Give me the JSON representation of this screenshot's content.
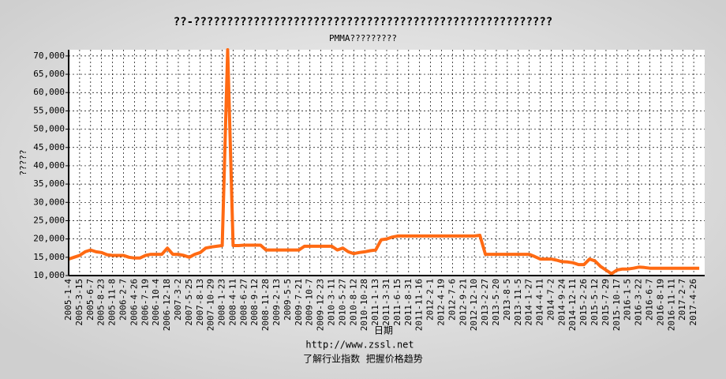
{
  "chart_data": {
    "type": "line",
    "title": "??-??????????????????????????????????????????????????????",
    "subtitle": "PMMA?????????",
    "y_label": "?????",
    "x_label": "日期",
    "footer_url": "http://www.zssl.net",
    "footer_slogan": "了解行业指数  把握价格趋势",
    "categories": [
      "2005-1-4",
      null,
      "2005-3-15",
      null,
      "2005-6-7",
      null,
      "2005-8-23",
      null,
      "2005-11-8",
      null,
      "2006-2-7",
      null,
      "2006-4-26",
      null,
      "2006-7-19",
      null,
      "2006-10-4",
      null,
      "2006-12-18",
      null,
      "2007-3-2",
      null,
      "2007-5-25",
      null,
      "2007-8-13",
      null,
      "2007-10-29",
      null,
      "2008-1-23",
      null,
      "2008-4-11",
      null,
      "2008-6-27",
      null,
      "2008-9-12",
      null,
      "2008-11-28",
      null,
      "2009-2-13",
      null,
      "2009-5-5",
      null,
      "2009-7-21",
      null,
      "2009-10-7",
      null,
      "2009-12-23",
      null,
      "2010-3-11",
      null,
      "2010-5-27",
      null,
      "2010-8-12",
      null,
      "2010-10-28",
      null,
      "2011-1-13",
      null,
      "2011-3-31",
      null,
      "2011-6-15",
      null,
      "2011-8-31",
      null,
      "2011-11-16",
      null,
      "2012-2-1",
      null,
      "2012-4-19",
      null,
      "2012-7-6",
      null,
      "2012-9-21",
      null,
      "2012-12-10",
      null,
      "2013-2-27",
      null,
      "2013-5-20",
      null,
      "2013-8-5",
      null,
      "2013-11-5",
      null,
      "2014-1-27",
      null,
      "2014-4-11",
      null,
      "2014-7-2",
      null,
      "2014-9-24",
      null,
      "2014-12-11",
      null,
      "2015-2-26",
      null,
      "2015-5-12",
      null,
      "2015-7-29",
      null,
      "2015-10-17",
      null,
      "2016-1-5",
      null,
      "2016-3-22",
      null,
      "2016-6-7",
      null,
      "2016-8-19",
      null,
      "2016-11-11",
      null,
      "2017-2-7",
      null,
      "2017-4-26",
      null
    ],
    "values": [
      14500,
      15000,
      15500,
      16500,
      17000,
      16500,
      16300,
      15700,
      15500,
      15500,
      15500,
      15000,
      14800,
      14800,
      15500,
      15800,
      15800,
      15800,
      17500,
      15800,
      15800,
      15500,
      15000,
      15800,
      16300,
      17500,
      17800,
      18000,
      18200,
      71700,
      18200,
      18200,
      18300,
      18300,
      18300,
      18300,
      17000,
      17000,
      17000,
      17000,
      17000,
      17000,
      17000,
      18000,
      18000,
      18000,
      18000,
      18000,
      18000,
      17000,
      17500,
      16500,
      16000,
      16300,
      16500,
      16800,
      17000,
      19800,
      20000,
      20500,
      20800,
      20800,
      20800,
      20800,
      20800,
      20800,
      20800,
      20800,
      20800,
      20800,
      20800,
      20800,
      20800,
      20800,
      20800,
      21000,
      15800,
      15800,
      15800,
      15800,
      15800,
      15800,
      15800,
      15800,
      15800,
      15200,
      14500,
      14500,
      14500,
      14200,
      13800,
      13700,
      13500,
      13000,
      13000,
      14500,
      14000,
      12500,
      11500,
      10500,
      11500,
      11800,
      11800,
      12000,
      12300,
      12200,
      12000,
      12000,
      12000,
      12000,
      12000,
      12000,
      12000,
      12000,
      12000,
      12000
    ],
    "color": "#ff6a13",
    "ylim": [
      10000,
      71700
    ],
    "yticks": [
      {
        "value": 10000,
        "label": "10,000"
      },
      {
        "value": 15000,
        "label": "15,000"
      },
      {
        "value": 20000,
        "label": "20,000"
      },
      {
        "value": 25000,
        "label": "25,000"
      },
      {
        "value": 30000,
        "label": "30,000"
      },
      {
        "value": 35000,
        "label": "35,000"
      },
      {
        "value": 40000,
        "label": "40,000"
      },
      {
        "value": 45000,
        "label": "45,000"
      },
      {
        "value": 50000,
        "label": "50,000"
      },
      {
        "value": 55000,
        "label": "55,000"
      },
      {
        "value": 60000,
        "label": "60,000"
      },
      {
        "value": 65000,
        "label": "65,000"
      },
      {
        "value": 70000,
        "label": "70,000"
      }
    ],
    "grid": true
  }
}
